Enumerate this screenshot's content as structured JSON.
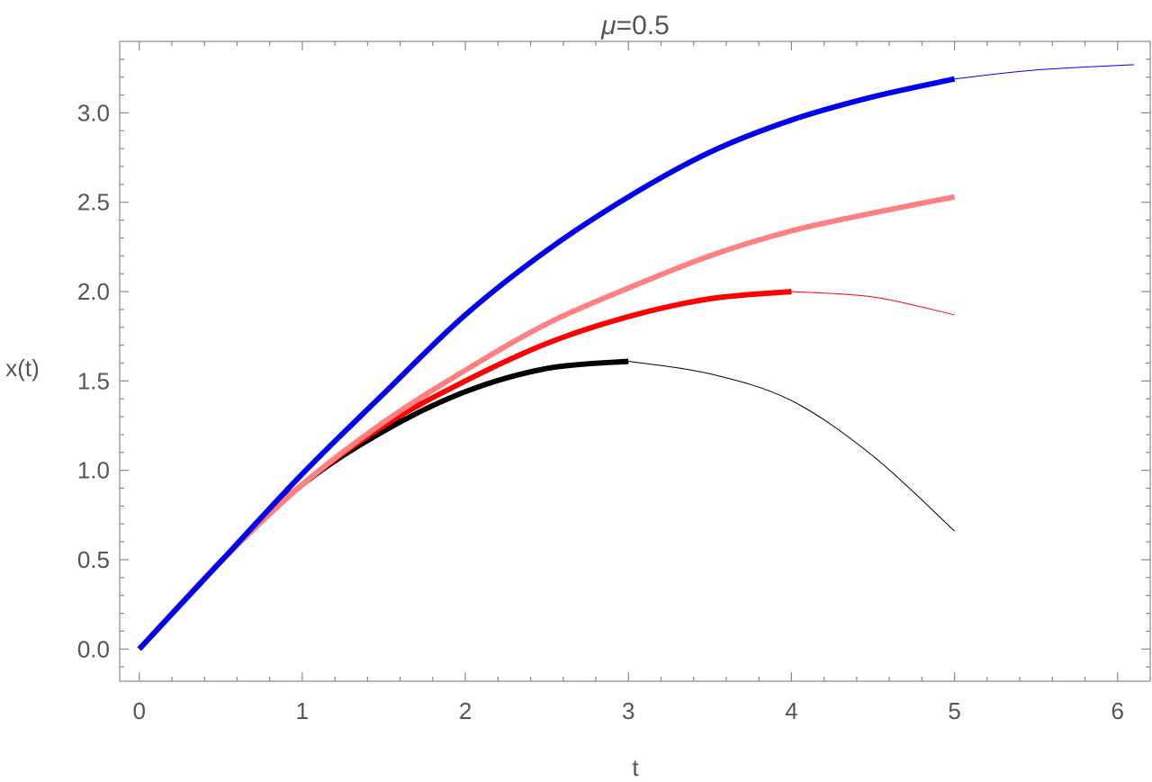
{
  "chart_data": {
    "type": "line",
    "title": "μ=0.5",
    "title_parts": {
      "symbol": "μ",
      "rest": "=0.5"
    },
    "xlabel": "t",
    "ylabel": "x(t)",
    "xlim": [
      -0.12,
      6.2
    ],
    "ylim": [
      -0.18,
      3.4
    ],
    "x_ticks": [
      0,
      1,
      2,
      3,
      4,
      5,
      6
    ],
    "x_tick_labels": [
      "0",
      "1",
      "2",
      "3",
      "4",
      "5",
      "6"
    ],
    "y_ticks": [
      0,
      0.5,
      1,
      1.5,
      2,
      2.5,
      3
    ],
    "y_tick_labels": [
      "0.0",
      "0.5",
      "1.0",
      "1.5",
      "2.0",
      "2.5",
      "3.0"
    ],
    "grid": false,
    "series": [
      {
        "color": "#000000",
        "thick": {
          "x": [
            0,
            0.5,
            1,
            1.5,
            2,
            2.5,
            3
          ],
          "y": [
            0,
            0.49,
            0.92,
            1.22,
            1.44,
            1.57,
            1.61
          ]
        },
        "thin": {
          "x": [
            3,
            3.5,
            4,
            4.5,
            5
          ],
          "y": [
            1.61,
            1.54,
            1.39,
            1.08,
            0.66
          ]
        }
      },
      {
        "color": "#ff0000",
        "thick": {
          "x": [
            0,
            0.5,
            1,
            1.5,
            2,
            2.5,
            3,
            3.5,
            4
          ],
          "y": [
            0,
            0.49,
            0.92,
            1.25,
            1.5,
            1.71,
            1.86,
            1.96,
            2.0
          ]
        },
        "thin": {
          "x": [
            4,
            4.5,
            5
          ],
          "y": [
            2.0,
            1.97,
            1.87
          ]
        }
      },
      {
        "color": "#ff8080",
        "thick": {
          "x": [
            0,
            0.5,
            1,
            1.5,
            2,
            2.5,
            3,
            3.5,
            4,
            4.5,
            5
          ],
          "y": [
            0,
            0.49,
            0.92,
            1.27,
            1.56,
            1.82,
            2.02,
            2.2,
            2.34,
            2.44,
            2.53
          ]
        },
        "thin": null
      },
      {
        "color": "#0000ee",
        "thick": {
          "x": [
            0,
            0.5,
            1,
            1.5,
            2,
            2.5,
            3,
            3.5,
            4,
            4.5,
            5
          ],
          "y": [
            0,
            0.49,
            0.98,
            1.43,
            1.87,
            2.23,
            2.53,
            2.78,
            2.96,
            3.09,
            3.19
          ]
        },
        "thin": {
          "x": [
            5,
            5.5,
            6.1
          ],
          "y": [
            3.19,
            3.24,
            3.27
          ]
        }
      }
    ]
  }
}
